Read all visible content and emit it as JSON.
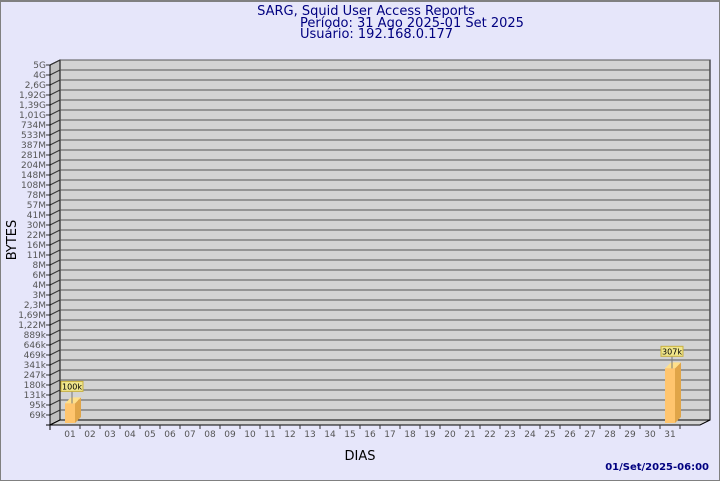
{
  "chart_data": {
    "type": "bar",
    "title": "SARG, Squid User Access Reports",
    "subtitle_period": "Período: 31 Ago 2025-01 Set 2025",
    "subtitle_user": "Usuário: 192.168.0.177",
    "xlabel": "DIAS",
    "ylabel": "BYTES",
    "y_scale": "log",
    "grid": true,
    "categories": [
      "01",
      "02",
      "03",
      "04",
      "05",
      "06",
      "07",
      "08",
      "09",
      "10",
      "11",
      "12",
      "13",
      "14",
      "15",
      "16",
      "17",
      "18",
      "19",
      "20",
      "21",
      "22",
      "23",
      "24",
      "25",
      "26",
      "27",
      "28",
      "29",
      "30",
      "31"
    ],
    "series": [
      {
        "values": [
          100000,
          null,
          null,
          null,
          null,
          null,
          null,
          null,
          null,
          null,
          null,
          null,
          null,
          null,
          null,
          null,
          null,
          null,
          null,
          null,
          null,
          null,
          null,
          null,
          null,
          null,
          null,
          null,
          null,
          null,
          307000
        ],
        "labels": {
          "0": "100k",
          "30": "307k"
        }
      }
    ],
    "y_ticks": [
      "69k",
      "95k",
      "131k",
      "180k",
      "247k",
      "341k",
      "469k",
      "646k",
      "889k",
      "1,22M",
      "1,69M",
      "2,3M",
      "3M",
      "4M",
      "6M",
      "8M",
      "11M",
      "16M",
      "22M",
      "30M",
      "41M",
      "57M",
      "78M",
      "108M",
      "148M",
      "204M",
      "281M",
      "387M",
      "533M",
      "734M",
      "1,01G",
      "1,39G",
      "1,92G",
      "2,6G",
      "4G",
      "5G"
    ],
    "footer": "01/Set/2025-06:00",
    "colors": {
      "background": "#e6e6fa",
      "plot": "#d3d3d3",
      "wall": "#c0c0c0",
      "bar": "#ffc56e",
      "bar_side": "#e0a548",
      "bar_top": "#ffe08a",
      "label_box": "#f0e68c",
      "title": "#000080"
    }
  }
}
